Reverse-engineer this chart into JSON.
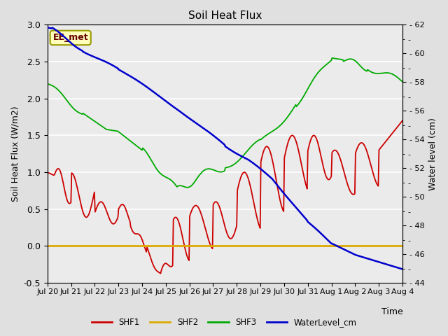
{
  "title": "Soil Heat Flux",
  "ylabel_left": "Soil Heat Flux (W/m2)",
  "ylabel_right": "Water level (cm)",
  "xlabel": "Time",
  "annotation": "EE_met",
  "ylim_left": [
    -0.5,
    3.0
  ],
  "ylim_right": [
    44,
    62
  ],
  "fig_bg": "#e0e0e0",
  "plot_bg": "#ebebeb",
  "colors": {
    "SHF1": "#cc0000",
    "SHF2": "#ddaa00",
    "SHF3": "#00aa00",
    "WaterLevel": "#0000cc"
  },
  "x_tick_labels": [
    "Jul 20",
    "Jul 21",
    "Jul 22",
    "Jul 23",
    "Jul 24",
    "Jul 25",
    "Jul 26",
    "Jul 27",
    "Jul 28",
    "Jul 29",
    "Jul 30",
    "Jul 31",
    "Aug 1",
    "Aug 2",
    "Aug 3",
    "Aug 4"
  ],
  "legend_entries": [
    "SHF1",
    "SHF2",
    "SHF3",
    "WaterLevel_cm"
  ]
}
